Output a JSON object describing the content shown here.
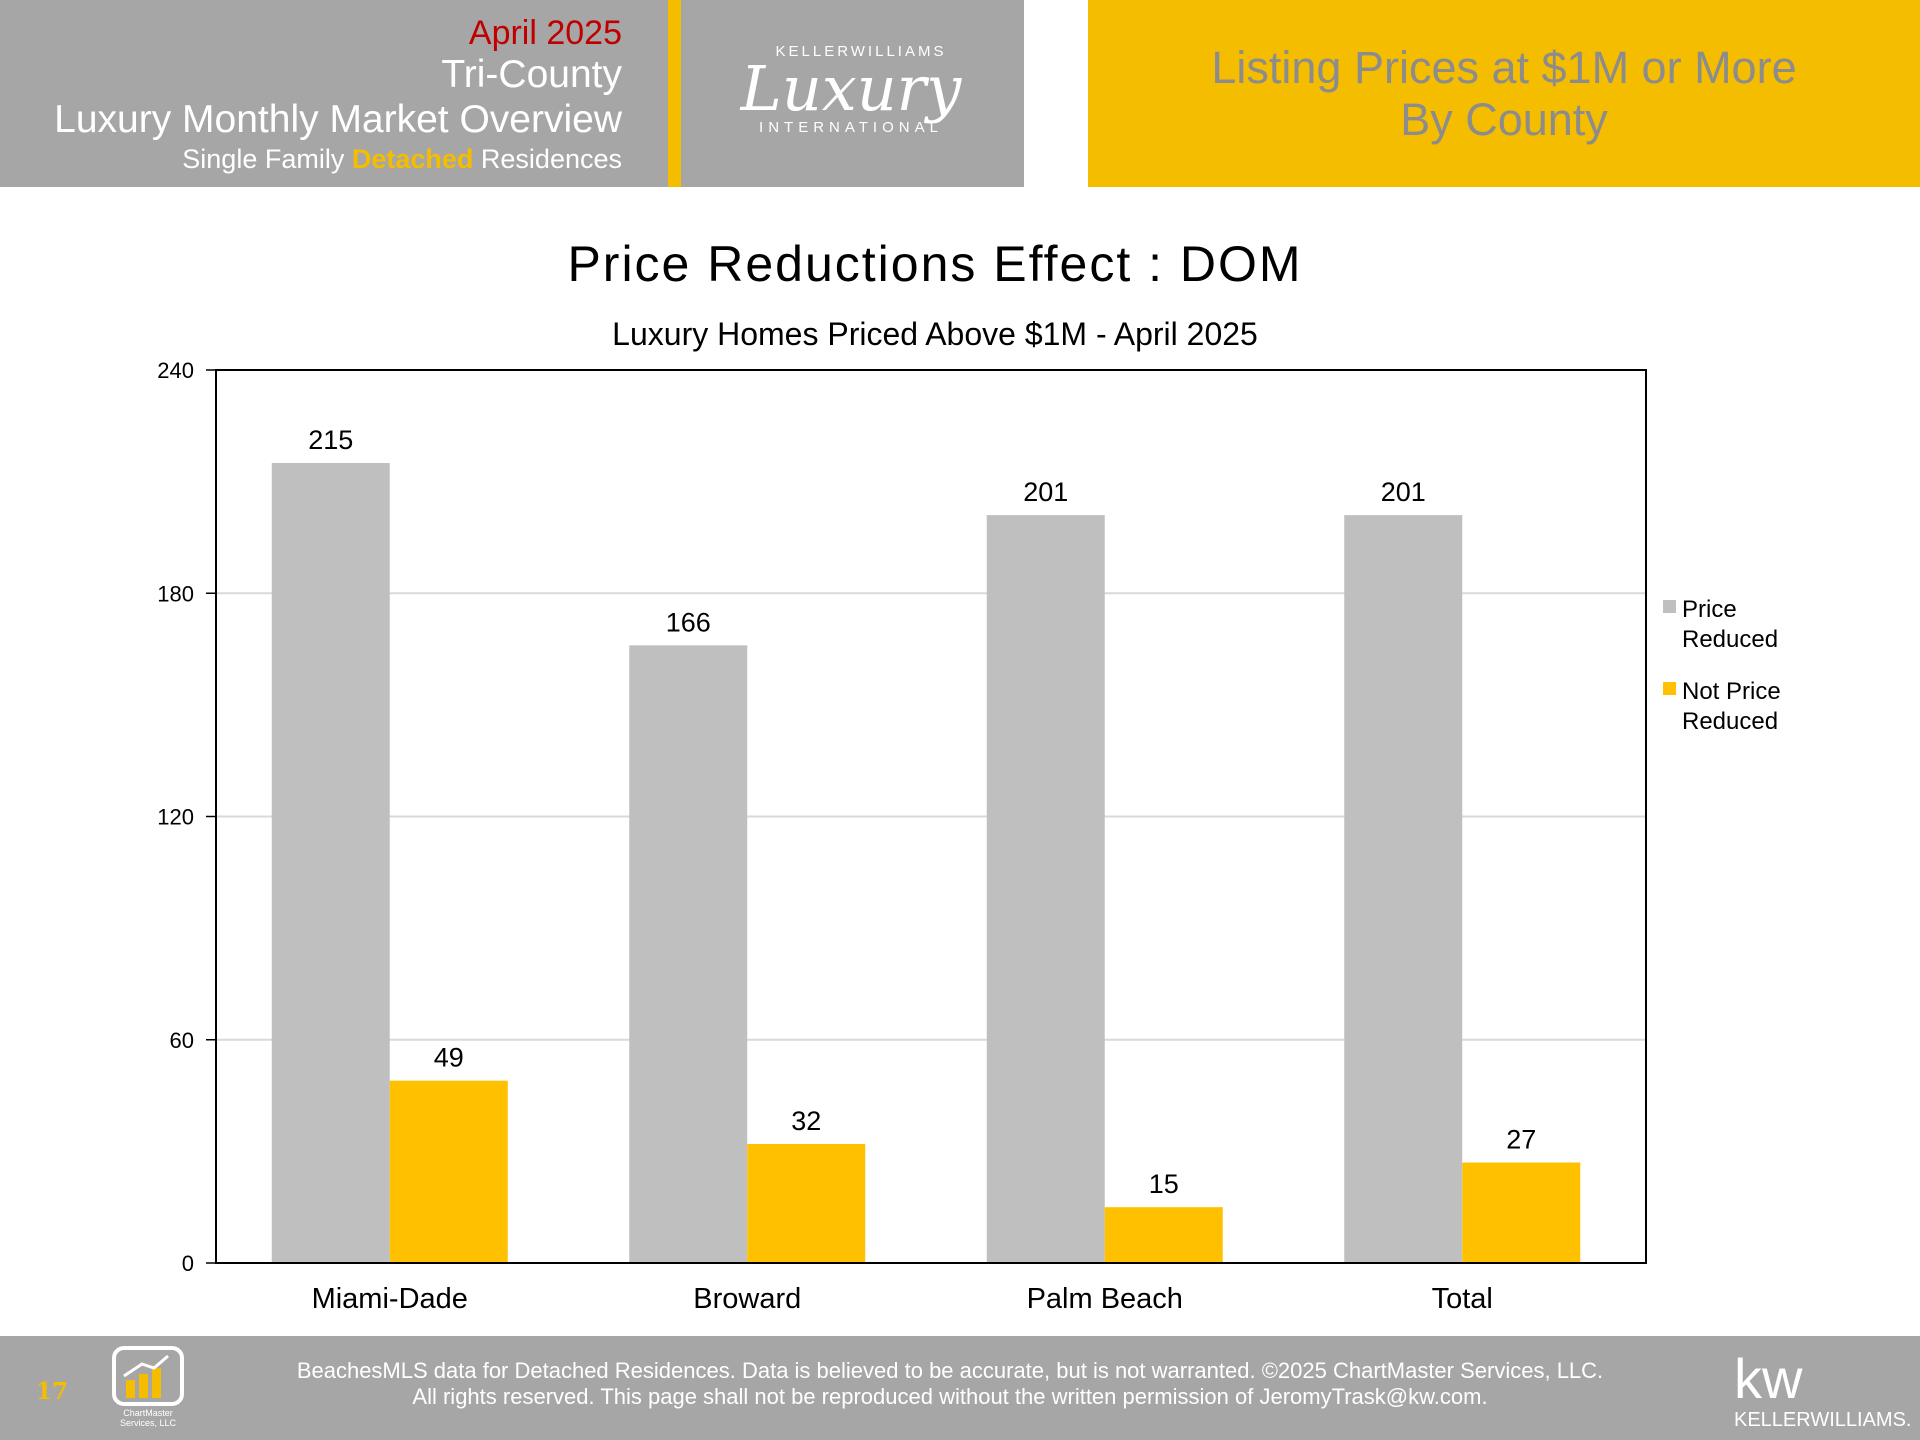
{
  "header": {
    "month": "April 2025",
    "region": "Tri-County",
    "report": "Luxury Monthly Market Overview",
    "subtitle_pre": "Single Family",
    "subtitle_highlight": "Detached",
    "subtitle_post": "Residences",
    "logo_top": "KELLERWILLIAMS",
    "logo_script": "Luxury",
    "logo_bottom": "INTERNATIONAL",
    "right_line1": "Listing Prices at $1M or More",
    "right_line2": "By County"
  },
  "chart_data": {
    "type": "bar",
    "title": "Price Reductions Effect : DOM",
    "subtitle": "Luxury Homes Priced Above $1M - April 2025",
    "categories": [
      "Miami-Dade",
      "Broward",
      "Palm Beach",
      "Total"
    ],
    "series": [
      {
        "name": "Price Reduced",
        "values": [
          215,
          166,
          201,
          201
        ],
        "color": "#bfbfbf"
      },
      {
        "name": "Not Price Reduced",
        "values": [
          49,
          32,
          15,
          27
        ],
        "color": "#ffc000"
      }
    ],
    "ylim": [
      0,
      240
    ],
    "yticks": [
      0,
      60,
      120,
      180,
      240
    ],
    "grid": true,
    "legend": "right",
    "data_labels": true
  },
  "footer": {
    "page_number": "17",
    "logo_text1": "ChartMaster",
    "logo_text2": "Services, LLC",
    "disclaimer1": "BeachesMLS data for Detached Residences.  Data is believed to be accurate, but is not warranted.   ©2025  ChartMaster Services, LLC.",
    "disclaimer2": "All rights reserved. This page shall not be reproduced without the written permission of JeromyTrask@kw.com.",
    "kw_mark": "kw",
    "kw_name": "KELLERWILLIAMS."
  }
}
